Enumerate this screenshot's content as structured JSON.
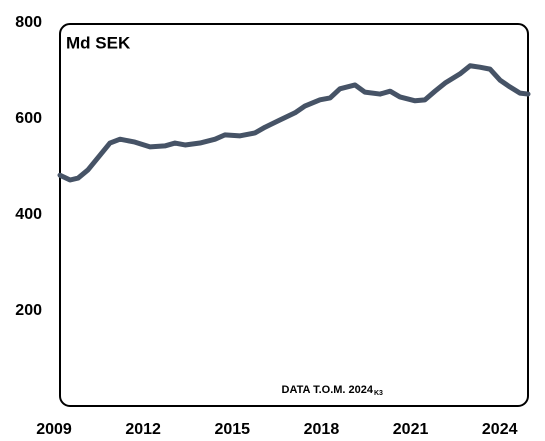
{
  "chart_data": {
    "type": "line",
    "y_label": "Md SEK",
    "annotation": "DATA T.O.M. 2024",
    "annotation_sub": "K3",
    "x": [
      2009.0,
      2009.34,
      2009.61,
      2009.94,
      2010.35,
      2010.68,
      2011.02,
      2011.52,
      2012.03,
      2012.53,
      2012.87,
      2013.21,
      2013.71,
      2014.22,
      2014.55,
      2015.06,
      2015.56,
      2015.9,
      2016.4,
      2016.91,
      2017.24,
      2017.75,
      2018.09,
      2018.42,
      2018.93,
      2019.26,
      2019.77,
      2020.11,
      2020.44,
      2020.95,
      2021.28,
      2021.62,
      2021.96,
      2022.46,
      2022.8,
      2023.13,
      2023.47,
      2023.81,
      2024.14,
      2024.48,
      2024.75
    ],
    "series": [
      {
        "color": "#465366",
        "values": [
          485,
          475,
          479,
          496,
          527,
          552,
          560,
          554,
          544,
          546,
          552,
          548,
          552,
          560,
          569,
          567,
          573,
          585,
          600,
          615,
          629,
          642,
          646,
          665,
          673,
          658,
          654,
          660,
          648,
          640,
          642,
          660,
          677,
          696,
          713,
          710,
          706,
          683,
          669,
          656,
          654
        ]
      }
    ],
    "xlim": [
      2009,
      2024.75
    ],
    "xticks": [
      2009,
      2012,
      2015,
      2018,
      2021,
      2024
    ],
    "ylim": [
      0,
      800
    ],
    "yticks": [
      200,
      400,
      600,
      800
    ]
  }
}
